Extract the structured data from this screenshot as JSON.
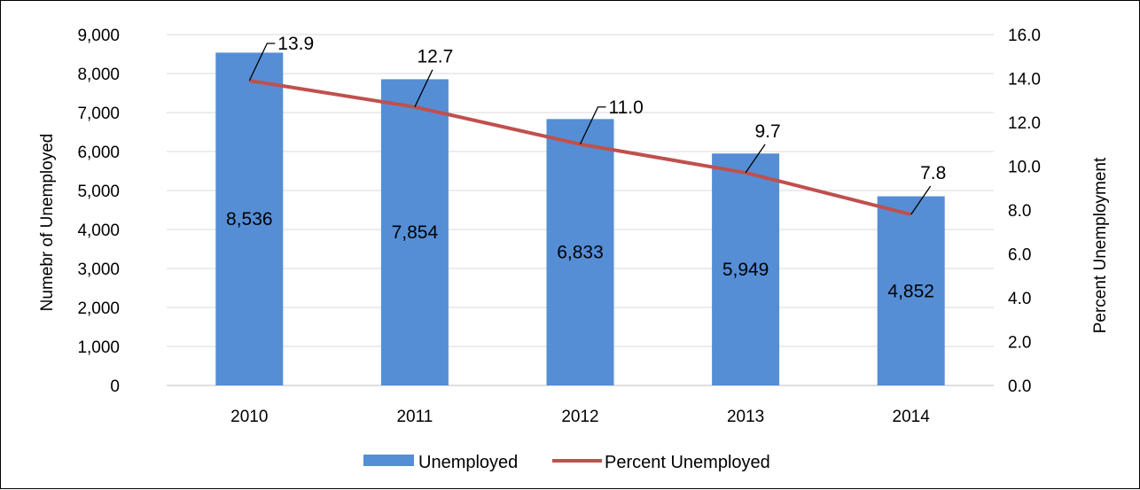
{
  "chart_data": {
    "type": "bar",
    "categories": [
      "2010",
      "2011",
      "2012",
      "2013",
      "2014"
    ],
    "series": [
      {
        "name": "Unemployed",
        "type": "bar",
        "axis": "left",
        "values": [
          8536,
          7854,
          6833,
          5949,
          4852
        ],
        "labels": [
          "8,536",
          "7,854",
          "6,833",
          "5,949",
          "4,852"
        ],
        "color": "#558ed5"
      },
      {
        "name": "Percent Unemployed",
        "type": "line",
        "axis": "right",
        "values": [
          13.9,
          12.7,
          11.0,
          9.7,
          7.8
        ],
        "labels": [
          "13.9",
          "12.7",
          "11.0",
          "9.7",
          "7.8"
        ],
        "color": "#c0504d"
      }
    ],
    "ylabel": "Numebr of Unemployed",
    "y2label": "Percent Unemployment",
    "ylim": [
      0,
      9000
    ],
    "y2lim": [
      0,
      16
    ],
    "yticks": [
      0,
      1000,
      2000,
      3000,
      4000,
      5000,
      6000,
      7000,
      8000,
      9000
    ],
    "ytick_labels": [
      "0",
      "1,000",
      "2,000",
      "3,000",
      "4,000",
      "5,000",
      "6,000",
      "7,000",
      "8,000",
      "9,000"
    ],
    "y2ticks": [
      0,
      2,
      4,
      6,
      8,
      10,
      12,
      14,
      16
    ],
    "y2tick_labels": [
      "0.0",
      "2.0",
      "4.0",
      "6.0",
      "8.0",
      "10.0",
      "12.0",
      "14.0",
      "16.0"
    ],
    "grid": true,
    "legend": "bottom"
  }
}
